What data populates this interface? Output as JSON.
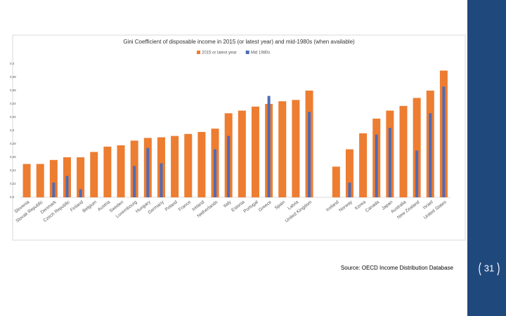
{
  "chart_data": {
    "type": "bar",
    "title": "Gini Coefficient of disposable income in 2015 (or latest year) and mid-1980s (when available)",
    "categories": [
      "Slovenia",
      "Slovak Republic",
      "Denmark",
      "Czech Republic",
      "Finland",
      "Belgium",
      "Austria",
      "Sweden",
      "Luxembourg",
      "Hungary",
      "Germany",
      "Poland",
      "France",
      "Ireland",
      "Netherlands",
      "Italy",
      "Estonia",
      "Portugal",
      "Greece",
      "Spain",
      "Latvia",
      "United Kingdom",
      null,
      "Iceland",
      "Norway",
      "Korea",
      "Canada",
      "Japan",
      "Australia",
      "New Zealand",
      "Israel",
      "United States"
    ],
    "series": [
      {
        "name": "2015 or latest year",
        "color": "#ed7d31",
        "values": [
          0.25,
          0.25,
          0.256,
          0.26,
          0.26,
          0.268,
          0.276,
          0.278,
          0.285,
          0.289,
          0.29,
          0.292,
          0.295,
          0.298,
          0.303,
          0.326,
          0.33,
          0.336,
          0.34,
          0.344,
          0.346,
          0.36,
          null,
          0.246,
          0.272,
          0.296,
          0.318,
          0.33,
          0.337,
          0.349,
          0.36,
          0.39
        ]
      },
      {
        "name": "Mid 1980s",
        "color": "#4f6bb5",
        "values": [
          null,
          null,
          0.222,
          0.232,
          0.212,
          null,
          null,
          null,
          0.247,
          0.274,
          0.251,
          null,
          null,
          null,
          0.272,
          0.292,
          null,
          null,
          0.352,
          null,
          null,
          0.328,
          null,
          null,
          0.222,
          null,
          0.294,
          0.304,
          null,
          0.27,
          0.326,
          0.366
        ]
      }
    ],
    "ylim": [
      0.2,
      0.4
    ],
    "yticks": [
      {
        "value": 0.2,
        "label": "0,2"
      },
      {
        "value": 0.22,
        "label": "0,22"
      },
      {
        "value": 0.24,
        "label": "0,24"
      },
      {
        "value": 0.26,
        "label": "0,26"
      },
      {
        "value": 0.28,
        "label": "0,28"
      },
      {
        "value": 0.3,
        "label": "0,3"
      },
      {
        "value": 0.32,
        "label": "0,32"
      },
      {
        "value": 0.34,
        "label": "0,34"
      },
      {
        "value": 0.36,
        "label": "0,36"
      },
      {
        "value": 0.38,
        "label": "0,38"
      },
      {
        "value": 0.4,
        "label": "0,4"
      }
    ],
    "grid": false
  },
  "footer": {
    "source": "Source: OECD Income Distribution Database",
    "page_number": "31"
  }
}
